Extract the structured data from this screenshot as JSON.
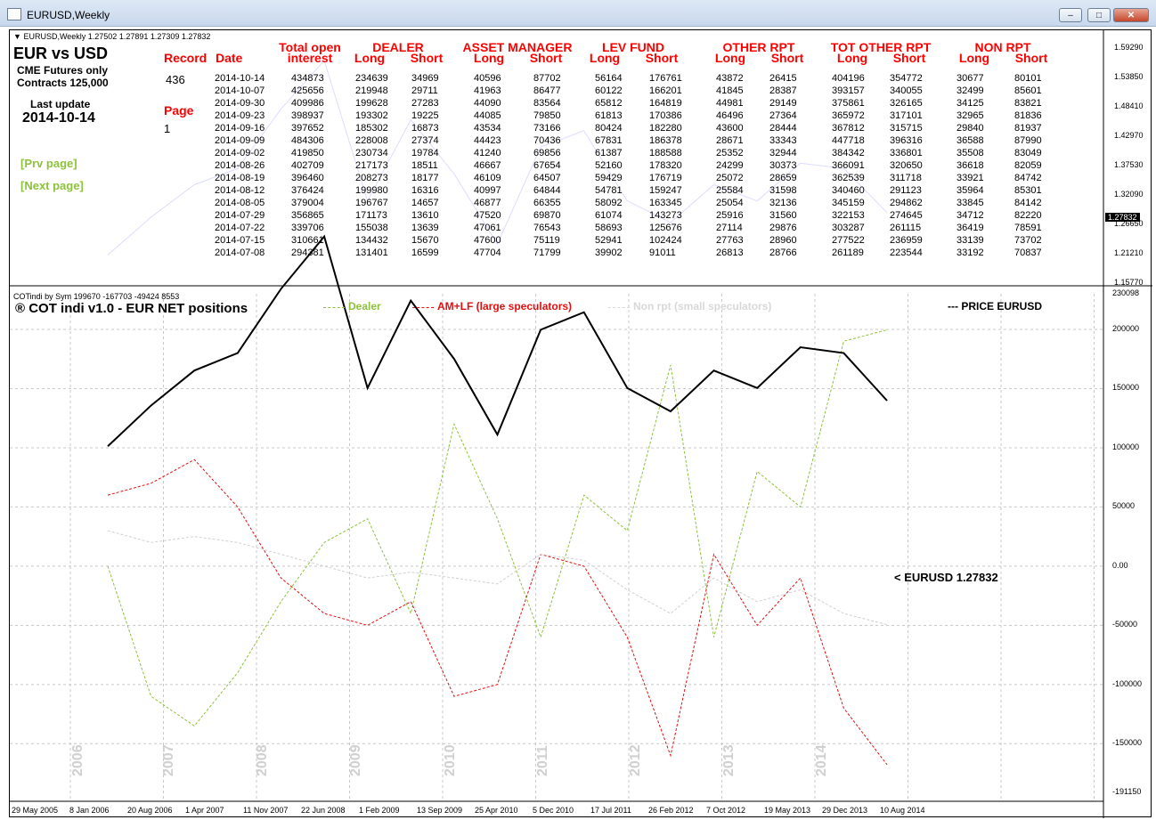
{
  "window": {
    "title": "EURUSD,Weekly",
    "min_label": "–",
    "max_label": "□",
    "close_label": "✕"
  },
  "top_panel": {
    "header": "EURUSD,Weekly  1.27502 1.27891 1.27309 1.27832",
    "title": "EUR vs USD",
    "sub1": "CME Futures only",
    "sub2": "Contracts 125,000",
    "last_update_label": "Last update",
    "last_update": "2014-10-14",
    "record_label": "Record",
    "record_value": "436",
    "date_label": "Date",
    "page_label": "Page",
    "page_value": "1",
    "prev_page": "[Prv page]",
    "next_page": "[Next page]",
    "groups": [
      {
        "name": "Total open",
        "sub": [
          "interest"
        ]
      },
      {
        "name": "DEALER",
        "sub": [
          "Long",
          "Short"
        ]
      },
      {
        "name": "ASSET MANAGER",
        "sub": [
          "Long",
          "Short"
        ]
      },
      {
        "name": "LEV FUND",
        "sub": [
          "Long",
          "Short"
        ]
      },
      {
        "name": "OTHER RPT",
        "sub": [
          "Long",
          "Short"
        ]
      },
      {
        "name": "TOT OTHER RPT",
        "sub": [
          "Long",
          "Short"
        ]
      },
      {
        "name": "NON RPT",
        "sub": [
          "Long",
          "Short"
        ]
      }
    ],
    "rows": [
      [
        "2014-10-14",
        "434873",
        "234639",
        "34969",
        "40596",
        "87702",
        "56164",
        "176761",
        "43872",
        "26415",
        "404196",
        "354772",
        "30677",
        "80101"
      ],
      [
        "2014-10-07",
        "425656",
        "219948",
        "29711",
        "41963",
        "86477",
        "60122",
        "166201",
        "41845",
        "28387",
        "393157",
        "340055",
        "32499",
        "85601"
      ],
      [
        "2014-09-30",
        "409986",
        "199628",
        "27283",
        "44090",
        "83564",
        "65812",
        "164819",
        "44981",
        "29149",
        "375861",
        "326165",
        "34125",
        "83821"
      ],
      [
        "2014-09-23",
        "398937",
        "193302",
        "19225",
        "44085",
        "79850",
        "61813",
        "170386",
        "46496",
        "27364",
        "365972",
        "317101",
        "32965",
        "81836"
      ],
      [
        "2014-09-16",
        "397652",
        "185302",
        "16873",
        "43534",
        "73166",
        "80424",
        "182280",
        "43600",
        "28444",
        "367812",
        "315715",
        "29840",
        "81937"
      ],
      [
        "2014-09-09",
        "484306",
        "228008",
        "27374",
        "44423",
        "70436",
        "67831",
        "186378",
        "28671",
        "33343",
        "447718",
        "396316",
        "36588",
        "87990"
      ],
      [
        "2014-09-02",
        "419850",
        "230734",
        "19784",
        "41240",
        "69856",
        "61387",
        "188588",
        "25352",
        "32944",
        "384342",
        "336801",
        "35508",
        "83049"
      ],
      [
        "2014-08-26",
        "402709",
        "217173",
        "18511",
        "46667",
        "67654",
        "52160",
        "178320",
        "24299",
        "30373",
        "366091",
        "320650",
        "36618",
        "82059"
      ],
      [
        "2014-08-19",
        "396460",
        "208273",
        "18177",
        "46109",
        "64507",
        "59429",
        "176719",
        "25072",
        "28659",
        "362539",
        "311718",
        "33921",
        "84742"
      ],
      [
        "2014-08-12",
        "376424",
        "199980",
        "16316",
        "40997",
        "64844",
        "54781",
        "159247",
        "25584",
        "31598",
        "340460",
        "291123",
        "35964",
        "85301"
      ],
      [
        "2014-08-05",
        "379004",
        "196767",
        "14657",
        "46877",
        "66355",
        "58092",
        "163345",
        "25054",
        "32136",
        "345159",
        "294862",
        "33845",
        "84142"
      ],
      [
        "2014-07-29",
        "356865",
        "171173",
        "13610",
        "47520",
        "69870",
        "61074",
        "143273",
        "25916",
        "31560",
        "322153",
        "274645",
        "34712",
        "82220"
      ],
      [
        "2014-07-22",
        "339706",
        "155038",
        "13639",
        "47061",
        "76543",
        "58693",
        "125676",
        "27114",
        "29876",
        "303287",
        "261115",
        "36419",
        "78591"
      ],
      [
        "2014-07-15",
        "310661",
        "134432",
        "15670",
        "47600",
        "75119",
        "52941",
        "102424",
        "27763",
        "28960",
        "277522",
        "236959",
        "33139",
        "73702"
      ],
      [
        "2014-07-08",
        "294381",
        "131401",
        "16599",
        "47704",
        "71799",
        "39902",
        "91011",
        "26813",
        "28766",
        "261189",
        "223544",
        "33192",
        "70837"
      ]
    ],
    "price_axis": [
      "1.59290",
      "1.53850",
      "1.48410",
      "1.42970",
      "1.37530",
      "1.32090",
      "1.26650",
      "1.21210",
      "1.15770"
    ],
    "price_marker": "1.27832"
  },
  "bottom_panel": {
    "header": "COTindi by Sym 199670 -167703 -49424 8553",
    "title": "® COT indi v1.0 - EUR  NET positions",
    "legend": [
      {
        "label": "Dealer",
        "color": "#8cc23c"
      },
      {
        "label": "AM+LF (large speculators)",
        "color": "#e01010"
      },
      {
        "label": "Non rpt (small speculators)",
        "color": "#d8d8d8"
      }
    ],
    "price_legend": "--- PRICE EURUSD",
    "eurusd_label": "< EURUSD  1.27832",
    "axis_labels": [
      "230098",
      "200000",
      "150000",
      "100000",
      "50000",
      "0.00",
      "-50000",
      "-100000",
      "-150000",
      "-191150"
    ],
    "year_watermarks": [
      "2006",
      "2007",
      "2008",
      "2009",
      "2010",
      "2011",
      "2012",
      "2013",
      "2014"
    ]
  },
  "time_axis": [
    "29 May 2005",
    "8 Jan 2006",
    "20 Aug 2006",
    "1 Apr 2007",
    "11 Nov 2007",
    "22 Jun 2008",
    "1 Feb 2009",
    "13 Sep 2009",
    "25 Apr 2010",
    "5 Dec 2010",
    "17 Jul 2011",
    "26 Feb 2012",
    "7 Oct 2012",
    "19 May 2013",
    "29 Dec 2013",
    "10 Aug 2014"
  ],
  "chart_data": {
    "type": "line",
    "title": "® COT indi v1.0 - EUR  NET positions",
    "x": [
      "2006-01-08",
      "2006-06-01",
      "2007-01-01",
      "2007-06-01",
      "2008-01-01",
      "2008-06-01",
      "2009-01-01",
      "2009-06-01",
      "2010-01-01",
      "2010-06-01",
      "2011-01-01",
      "2011-06-01",
      "2012-01-01",
      "2012-06-01",
      "2013-01-01",
      "2013-06-01",
      "2014-01-01",
      "2014-06-01",
      "2014-10-14"
    ],
    "series": [
      {
        "name": "Dealer",
        "values": [
          0,
          -110000,
          -135000,
          -90000,
          -30000,
          20000,
          40000,
          -40000,
          120000,
          40000,
          -60000,
          60000,
          30000,
          170000,
          -60000,
          80000,
          50000,
          190000,
          199670
        ]
      },
      {
        "name": "AM+LF (large speculators)",
        "values": [
          60000,
          70000,
          90000,
          50000,
          -10000,
          -40000,
          -50000,
          -30000,
          -110000,
          -100000,
          10000,
          0,
          -60000,
          -160000,
          10000,
          -50000,
          -10000,
          -120000,
          -167703
        ]
      },
      {
        "name": "Non rpt (small speculators)",
        "values": [
          30000,
          20000,
          25000,
          20000,
          10000,
          0,
          -10000,
          -5000,
          -10000,
          -15000,
          10000,
          5000,
          -20000,
          -40000,
          -10000,
          -30000,
          -20000,
          -40000,
          -49424
        ]
      },
      {
        "name": "PRICE EURUSD",
        "values": [
          1.2,
          1.27,
          1.33,
          1.36,
          1.47,
          1.56,
          1.3,
          1.45,
          1.35,
          1.22,
          1.4,
          1.43,
          1.3,
          1.26,
          1.33,
          1.3,
          1.37,
          1.36,
          1.27832
        ]
      }
    ],
    "ylim": [
      -191150,
      230098
    ]
  }
}
